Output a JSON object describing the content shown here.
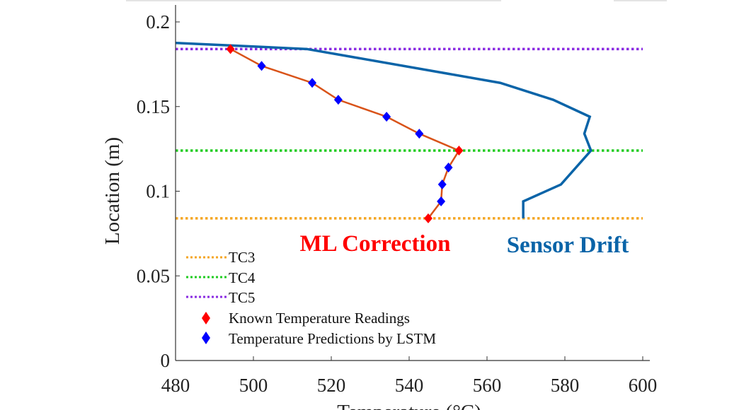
{
  "chart_data": {
    "type": "line",
    "xlabel": "Temperature (°C)",
    "ylabel": "Location (m)",
    "xlim": [
      480,
      600
    ],
    "ylim": [
      0,
      0.21
    ],
    "xticks": [
      "480",
      "500",
      "520",
      "540",
      "560",
      "580",
      "600"
    ],
    "yticks": [
      "0",
      "0.05",
      "0.1",
      "0.15",
      "0.2"
    ],
    "grid": false,
    "legend_position": "bottom-left",
    "reference_lines": [
      {
        "name": "TC3",
        "y": 0.084,
        "color": "#f5a623",
        "style": "dotted"
      },
      {
        "name": "TC4",
        "y": 0.124,
        "color": "#22cc22",
        "style": "dotted"
      },
      {
        "name": "TC5",
        "y": 0.184,
        "color": "#8a2be2",
        "style": "dotted"
      }
    ],
    "series": [
      {
        "annotation": "Sensor Drift",
        "color": "#0a64a8",
        "points": [
          [
            480,
            0.1876
          ],
          [
            513.7,
            0.184
          ],
          [
            563.4,
            0.164
          ],
          [
            577.0,
            0.154
          ],
          [
            586.4,
            0.144
          ],
          [
            585.0,
            0.134
          ],
          [
            586.7,
            0.124
          ],
          [
            579.0,
            0.104
          ],
          [
            569.3,
            0.094
          ],
          [
            569.3,
            0.084
          ]
        ]
      },
      {
        "annotation": "ML Correction",
        "color": "#d95319",
        "points": [
          {
            "x": 494.1,
            "y": 0.184,
            "marker": "known"
          },
          {
            "x": 502.1,
            "y": 0.174,
            "marker": "lstm"
          },
          {
            "x": 515.1,
            "y": 0.164,
            "marker": "lstm"
          },
          {
            "x": 521.8,
            "y": 0.154,
            "marker": "lstm"
          },
          {
            "x": 534.2,
            "y": 0.144,
            "marker": "lstm"
          },
          {
            "x": 542.6,
            "y": 0.134,
            "marker": "lstm"
          },
          {
            "x": 552.8,
            "y": 0.124,
            "marker": "known"
          },
          {
            "x": 550.1,
            "y": 0.114,
            "marker": "lstm"
          },
          {
            "x": 548.5,
            "y": 0.104,
            "marker": "lstm"
          },
          {
            "x": 548.2,
            "y": 0.094,
            "marker": "lstm"
          },
          {
            "x": 544.9,
            "y": 0.084,
            "marker": "known"
          }
        ]
      }
    ],
    "markers": {
      "known": {
        "name": "Known Temperature Readings",
        "color": "#ff0000"
      },
      "lstm": {
        "name": "Temperature Predictions by LSTM",
        "color": "#0000ff"
      }
    },
    "annotations": {
      "ml_correction": {
        "text": "ML Correction",
        "color": "#ff0000"
      },
      "sensor_drift": {
        "text": "Sensor Drift",
        "color": "#0a64a8"
      }
    },
    "legend": [
      "TC3",
      "TC4",
      "TC5",
      "Known Temperature Readings",
      "Temperature Predictions by LSTM"
    ]
  }
}
